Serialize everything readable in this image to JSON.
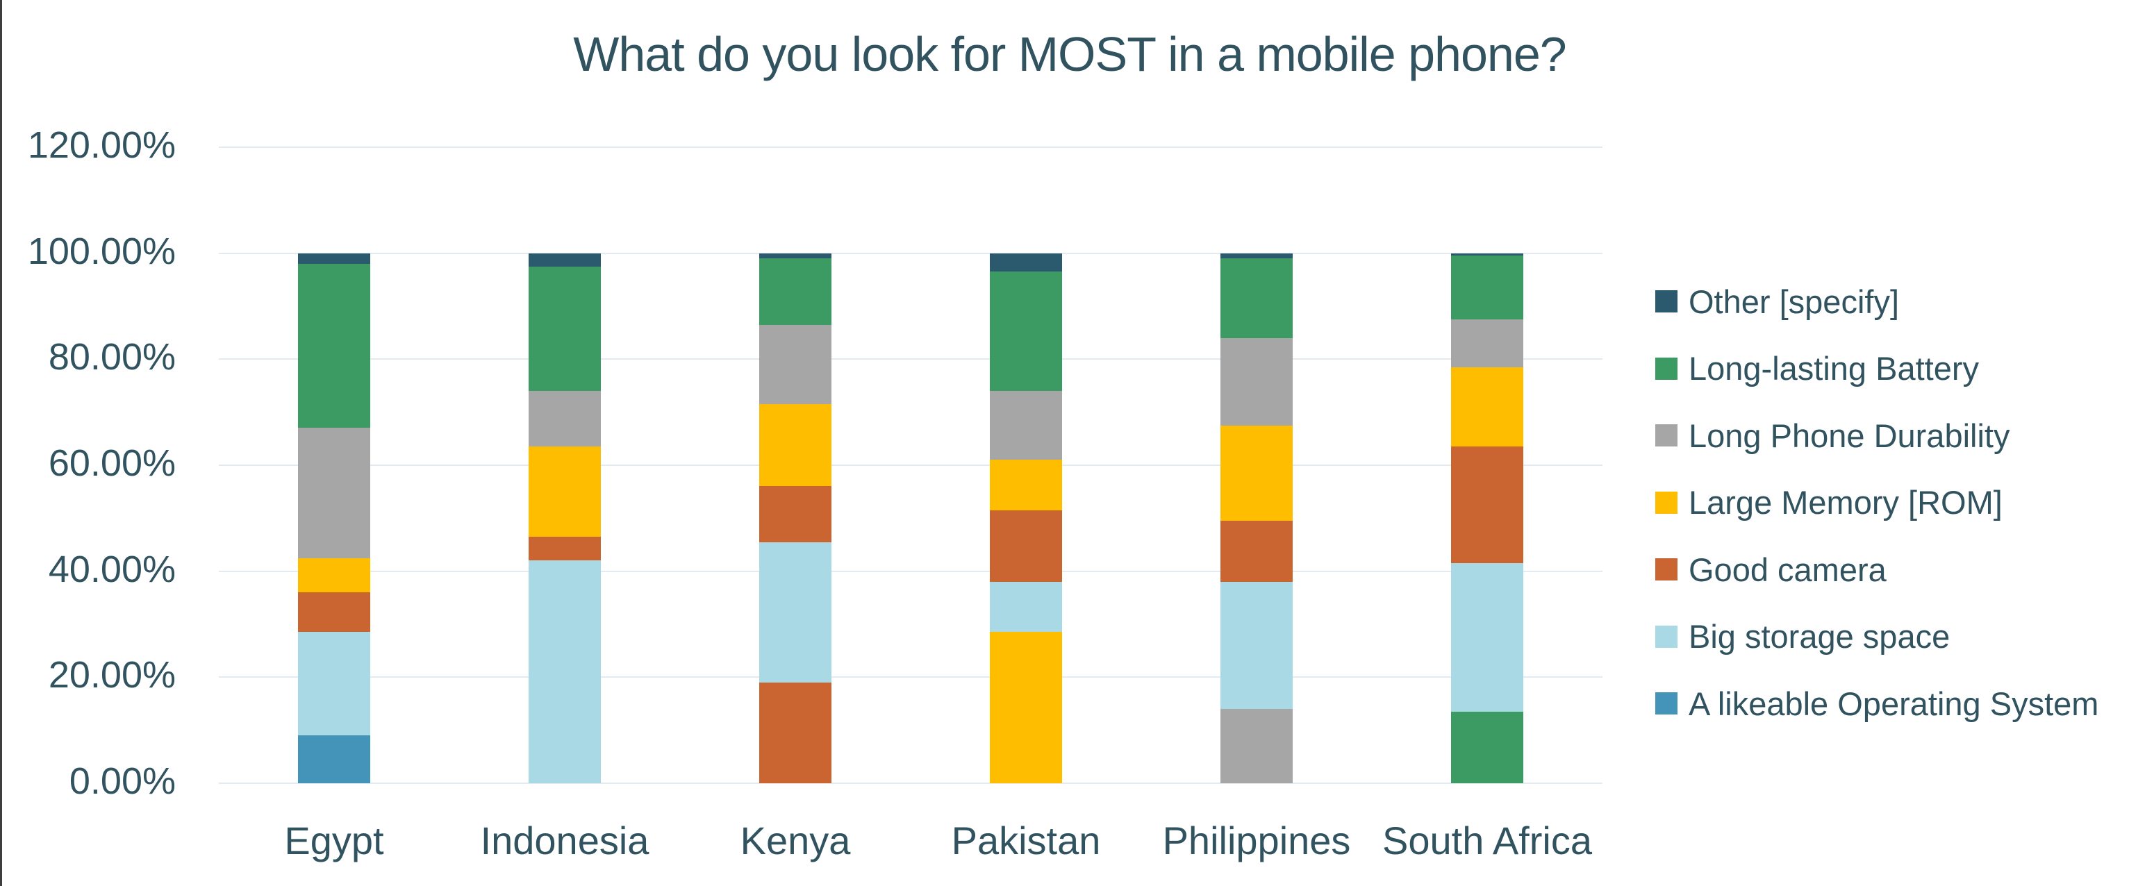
{
  "chart_data": {
    "type": "stacked_bar",
    "title": "What do you look for MOST in a mobile phone?",
    "xlabel": "",
    "ylabel": "",
    "units": "percent",
    "grid": true,
    "legend_position": "right",
    "text_color": "#31525f",
    "gridline_color": "#e3ebf1",
    "background_color": "#ffffff",
    "frame_border_color": "#3d3d3d",
    "categories": [
      "Egypt",
      "Indonesia",
      "Kenya",
      "Pakistan",
      "Philippines",
      "South Africa"
    ],
    "y_axis": {
      "min": 0,
      "max": 120,
      "ticks": [
        {
          "value": 0,
          "label": "0.00%"
        },
        {
          "value": 20,
          "label": "20.00%"
        },
        {
          "value": 40,
          "label": "40.00%"
        },
        {
          "value": 60,
          "label": "60.00%"
        },
        {
          "value": 80,
          "label": "80.00%"
        },
        {
          "value": 100,
          "label": "100.00%"
        },
        {
          "value": 120,
          "label": "120.00%"
        }
      ]
    },
    "series_colors": {
      "Other [specify]": "#2b5a6e",
      "Long-lasting Battery": "#3b9b63",
      "Long Phone Durability": "#a6a6a6",
      "Large Memory [ROM]": "#ffbd00",
      "Good camera": "#ca6430",
      "Big storage space": "#a9d9e5",
      "A likeable Operating System": "#4493b9"
    },
    "legend": [
      {
        "label": "Other [specify]"
      },
      {
        "label": "Long-lasting Battery"
      },
      {
        "label": "Long Phone Durability"
      },
      {
        "label": "Large Memory [ROM]"
      },
      {
        "label": "Good camera"
      },
      {
        "label": "Big storage space"
      },
      {
        "label": "A likeable Operating System"
      }
    ],
    "bars": [
      {
        "country": "Egypt",
        "segments": [
          {
            "label": "A likeable Operating System",
            "value": 9
          },
          {
            "label": "Big storage space",
            "value": 19.5
          },
          {
            "label": "Good camera",
            "value": 7.5
          },
          {
            "label": "Large Memory [ROM]",
            "value": 6.5
          },
          {
            "label": "Long Phone Durability",
            "value": 24.5
          },
          {
            "label": "Long-lasting Battery",
            "value": 31
          },
          {
            "label": "Other [specify]",
            "value": 2
          }
        ]
      },
      {
        "country": "Indonesia",
        "segments": [
          {
            "label": "Big storage space",
            "value": 42
          },
          {
            "label": "Good camera",
            "value": 4.5
          },
          {
            "label": "Large Memory [ROM]",
            "value": 17
          },
          {
            "label": "Long Phone Durability",
            "value": 10.5
          },
          {
            "label": "Long-lasting Battery",
            "value": 23.5
          },
          {
            "label": "Other [specify]",
            "value": 2.5
          }
        ]
      },
      {
        "country": "Kenya",
        "segments": [
          {
            "label": "Good camera",
            "value": 19
          },
          {
            "label": "Big storage space",
            "value": 26.5
          },
          {
            "label": "Good camera",
            "value": 10.5
          },
          {
            "label": "Large Memory [ROM]",
            "value": 15.5
          },
          {
            "label": "Long Phone Durability",
            "value": 15
          },
          {
            "label": "Long-lasting Battery",
            "value": 12.5
          },
          {
            "label": "Other [specify]",
            "value": 1
          }
        ]
      },
      {
        "country": "Pakistan",
        "segments": [
          {
            "label": "Large Memory [ROM]",
            "value": 28.5
          },
          {
            "label": "Big storage space",
            "value": 9.5
          },
          {
            "label": "Good camera",
            "value": 13.5
          },
          {
            "label": "Large Memory [ROM]",
            "value": 9.5
          },
          {
            "label": "Long Phone Durability",
            "value": 13
          },
          {
            "label": "Long-lasting Battery",
            "value": 22.5
          },
          {
            "label": "Other [specify]",
            "value": 3.5
          }
        ]
      },
      {
        "country": "Philippines",
        "segments": [
          {
            "label": "Long Phone Durability",
            "value": 14
          },
          {
            "label": "Big storage space",
            "value": 24
          },
          {
            "label": "Good camera",
            "value": 11.5
          },
          {
            "label": "Large Memory [ROM]",
            "value": 18
          },
          {
            "label": "Long Phone Durability",
            "value": 16.5
          },
          {
            "label": "Long-lasting Battery",
            "value": 15
          },
          {
            "label": "Other [specify]",
            "value": 1
          }
        ]
      },
      {
        "country": "South Africa",
        "segments": [
          {
            "label": "Long-lasting Battery",
            "value": 13.5
          },
          {
            "label": "Big storage space",
            "value": 28
          },
          {
            "label": "Good camera",
            "value": 22
          },
          {
            "label": "Large Memory [ROM]",
            "value": 15
          },
          {
            "label": "Long Phone Durability",
            "value": 9
          },
          {
            "label": "Long-lasting Battery",
            "value": 12
          },
          {
            "label": "Other [specify]",
            "value": 0.5
          }
        ]
      }
    ]
  }
}
